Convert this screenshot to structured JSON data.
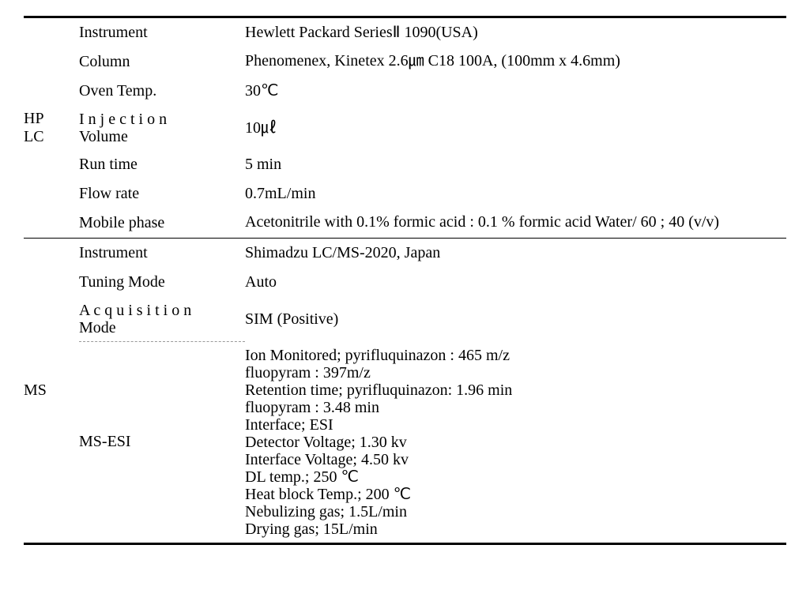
{
  "hplc": {
    "category_line1": "HP",
    "category_line2": "LC",
    "rows": [
      {
        "param": "Instrument",
        "value": "Hewlett Packard SeriesⅡ 1090(USA)"
      },
      {
        "param": "Column",
        "value": "Phenomenex, Kinetex 2.6㎛    C18 100A, (100mm x 4.6mm)"
      },
      {
        "param": "Oven Temp.",
        "value": "30℃"
      },
      {
        "param": "Injection Volume",
        "param_spread": true,
        "param_line1": "I n j e c t i o n",
        "param_line2": "Volume",
        "value": "10㎕"
      },
      {
        "param": "Run time",
        "value": "5 min"
      },
      {
        "param": "Flow rate",
        "value": "0.7mL/min"
      },
      {
        "param": "Mobile phase",
        "value": "Acetonitrile with 0.1%    formic acid : 0.1 % formic acid Water/ 60 ; 40 (v/v)"
      }
    ]
  },
  "ms": {
    "category": "MS",
    "rows": [
      {
        "param": "Instrument",
        "value": "Shimadzu LC/MS-2020,    Japan"
      },
      {
        "param": "Tuning Mode",
        "value": "Auto"
      },
      {
        "param": "Acquisition Mode",
        "param_spread": true,
        "param_line1": "A c q u i s i t i o n",
        "param_line2": "Mode",
        "value": "SIM (Positive)"
      },
      {
        "param": "MS-ESI",
        "value_lines": [
          "Ion Monitored;   pyrifluquinazon : 465 m/z",
          "fluopyram : 397m/z",
          "Retention time;   pyrifluquinazon: 1.96 min",
          "fluopyram : 3.48 min",
          "Interface; ESI",
          "Detector Voltage; 1.30    kv",
          "Interface Voltage; 4.50    kv",
          "DL temp.; 250 ℃",
          "Heat block Temp.; 200 ℃",
          "Nebulizing gas;    1.5L/min",
          "Drying gas; 15L/min"
        ]
      }
    ]
  }
}
